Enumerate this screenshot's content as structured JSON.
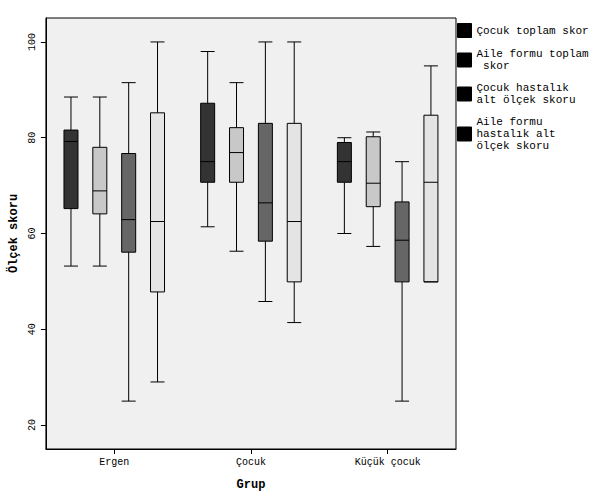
{
  "chart_data": {
    "type": "boxplot",
    "x_label": "Grup",
    "y_label": "Ölçek skoru",
    "categories": [
      "Ergen",
      "Çocuk",
      "Küçük çocuk"
    ],
    "ylim": [
      15,
      105
    ],
    "yticks": [
      20,
      40,
      60,
      80,
      100
    ],
    "grid": false,
    "legend": "upper right",
    "series": [
      {
        "name": "Çocuk toplam skor",
        "color": "#333333",
        "values": [
          [
            53.2,
            65.2,
            79.2,
            81.6,
            88.5
          ],
          [
            61.4,
            70.7,
            75,
            87.2,
            98
          ],
          [
            60,
            70.7,
            75,
            79,
            80
          ]
        ]
      },
      {
        "name": "Aile formu toplam skor",
        "color": "#c8c8c8",
        "values": [
          [
            53.2,
            64.1,
            68.9,
            78,
            88.5
          ],
          [
            56.3,
            70.7,
            76.9,
            82.1,
            91.5
          ],
          [
            57.3,
            65.6,
            70.5,
            80.2,
            81.2
          ]
        ]
      },
      {
        "name": "Çocuk hastalık alt ölçek skoru",
        "color": "#666666",
        "values": [
          [
            25,
            56.1,
            62.9,
            76.7,
            91.5
          ],
          [
            45.8,
            58.4,
            66.4,
            83,
            100
          ],
          [
            25,
            49.9,
            58.6,
            66.6,
            75
          ]
        ]
      },
      {
        "name": "Aile formu hastalık alt ölçek skoru",
        "color": "#e4e4e4",
        "values": [
          [
            29,
            47.8,
            62.5,
            85.2,
            100
          ],
          [
            41.4,
            49.9,
            62.5,
            83,
            100
          ],
          [
            49.9,
            49.9,
            70.7,
            84.7,
            95
          ]
        ]
      }
    ]
  }
}
